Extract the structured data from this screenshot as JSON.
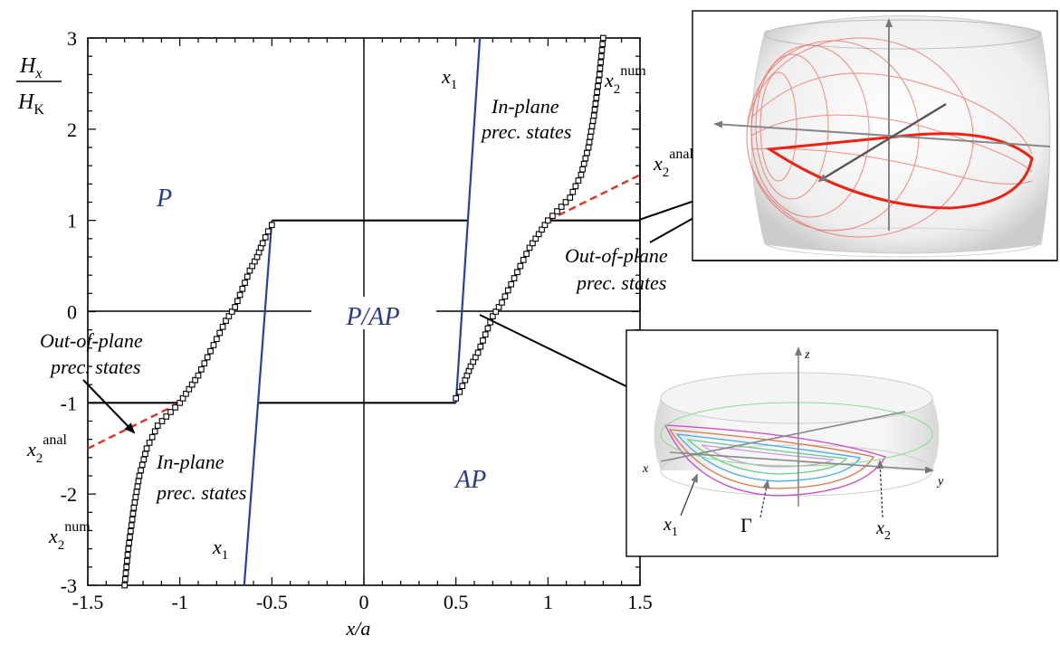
{
  "chart_data": {
    "type": "line",
    "xlabel": "x/a",
    "ylabel_num": "H",
    "ylabel_num_sub": "x",
    "ylabel_den": "H",
    "ylabel_den_sub": "K",
    "xlim": [
      -1.5,
      1.5
    ],
    "ylim": [
      -3,
      3
    ],
    "x_ticks": [
      -1.5,
      -1,
      -0.5,
      0,
      0.5,
      1,
      1.5
    ],
    "x_tick_labels": [
      "-1.5",
      "-1",
      "-0.5",
      "0",
      "0.5",
      "1",
      "1.5"
    ],
    "y_ticks": [
      -3,
      -2,
      -1,
      0,
      1,
      2,
      3
    ],
    "y_tick_labels": [
      "-3",
      "-2",
      "-1",
      "0",
      "1",
      "2",
      "3"
    ],
    "series": [
      {
        "name": "x2num",
        "style": "black-squares",
        "x": [
          -1.3,
          -1.28,
          -1.25,
          -1.22,
          -1.18,
          -1.12,
          -1.05,
          -1.0,
          -0.95,
          -0.9,
          -0.85,
          -0.8,
          -0.75,
          -0.7,
          -0.66,
          -0.62,
          -0.58,
          -0.55,
          -0.52,
          -0.5
        ],
        "y": [
          -3.0,
          -2.6,
          -2.15,
          -1.8,
          -1.5,
          -1.25,
          -1.1,
          -1.0,
          -0.85,
          -0.7,
          -0.5,
          -0.3,
          -0.1,
          0.05,
          0.25,
          0.45,
          0.6,
          0.75,
          0.88,
          0.95
        ]
      },
      {
        "name": "x2num-right",
        "style": "black-squares",
        "x": [
          0.5,
          0.52,
          0.55,
          0.58,
          0.62,
          0.66,
          0.7,
          0.75,
          0.8,
          0.85,
          0.9,
          0.95,
          1.0,
          1.05,
          1.12,
          1.18,
          1.22,
          1.25,
          1.28,
          1.3
        ],
        "y": [
          -0.95,
          -0.88,
          -0.75,
          -0.6,
          -0.45,
          -0.25,
          -0.05,
          0.1,
          0.3,
          0.5,
          0.7,
          0.85,
          1.0,
          1.1,
          1.25,
          1.5,
          1.8,
          2.15,
          2.6,
          3.0
        ]
      },
      {
        "name": "x1",
        "style": "blue-line",
        "x": [
          -0.65,
          -0.5
        ],
        "y": [
          -3.0,
          1.0
        ]
      },
      {
        "name": "x1-right",
        "style": "blue-line",
        "x": [
          0.5,
          0.63
        ],
        "y": [
          -1.0,
          3.0
        ]
      },
      {
        "name": "x2anal",
        "style": "red-dashed",
        "x": [
          -1.5,
          -1.0
        ],
        "y": [
          -1.5,
          -1.0
        ]
      },
      {
        "name": "x2anal-right",
        "style": "red-dashed",
        "x": [
          1.0,
          1.5
        ],
        "y": [
          1.0,
          1.5
        ]
      },
      {
        "name": "boundary-upper",
        "style": "black-line",
        "x": [
          -0.5,
          0.57
        ],
        "y": [
          1.0,
          1.0
        ]
      },
      {
        "name": "boundary-upper-right",
        "style": "black-line",
        "x": [
          1.0,
          1.5
        ],
        "y": [
          1.0,
          1.0
        ]
      },
      {
        "name": "boundary-lower",
        "style": "black-line",
        "x": [
          -0.57,
          0.5
        ],
        "y": [
          -1.0,
          -1.0
        ]
      },
      {
        "name": "boundary-lower-left",
        "style": "black-line",
        "x": [
          -1.5,
          -1.0
        ],
        "y": [
          -1.0,
          -1.0
        ]
      }
    ],
    "region_labels": {
      "P": "P",
      "PAP": "P/AP",
      "AP": "AP"
    },
    "annotations": {
      "x1_upper": "x",
      "x1_upper_sub": "1",
      "x2num_upper": "x",
      "x2num_upper_sup": "num",
      "x2num_upper_sub": "2",
      "inplane_upper_1": "In-plane",
      "inplane_upper_2": "prec. states",
      "x2anal_right": "x",
      "x2anal_right_sup": "anal",
      "x2anal_right_sub": "2",
      "outofplane_right_1": "Out-of-plane",
      "outofplane_right_2": "prec. states",
      "outofplane_left_1": "Out-of-plane",
      "outofplane_left_2": "prec. states",
      "x2anal_left": "x",
      "x2anal_left_sup": "anal",
      "x2anal_left_sub": "2",
      "inplane_lower_1": "In-plane",
      "inplane_lower_2": "prec. states",
      "x2num_lower": "x",
      "x2num_lower_sup": "num",
      "x2num_lower_sub": "2",
      "x1_lower": "x",
      "x1_lower_sub": "1"
    },
    "inset_lower": {
      "z_label": "z",
      "x_label": "x",
      "y_label": "y",
      "x1_label": "x",
      "x1_sub": "1",
      "gamma_label": "Γ",
      "x2_label": "x",
      "x2_sub": "2"
    },
    "colors": {
      "axes": "#000000",
      "x1": "#2b3ea8",
      "x2anal": "#e53020",
      "region_text": "#2b3a8c",
      "inset_red": "#ee3322"
    }
  }
}
